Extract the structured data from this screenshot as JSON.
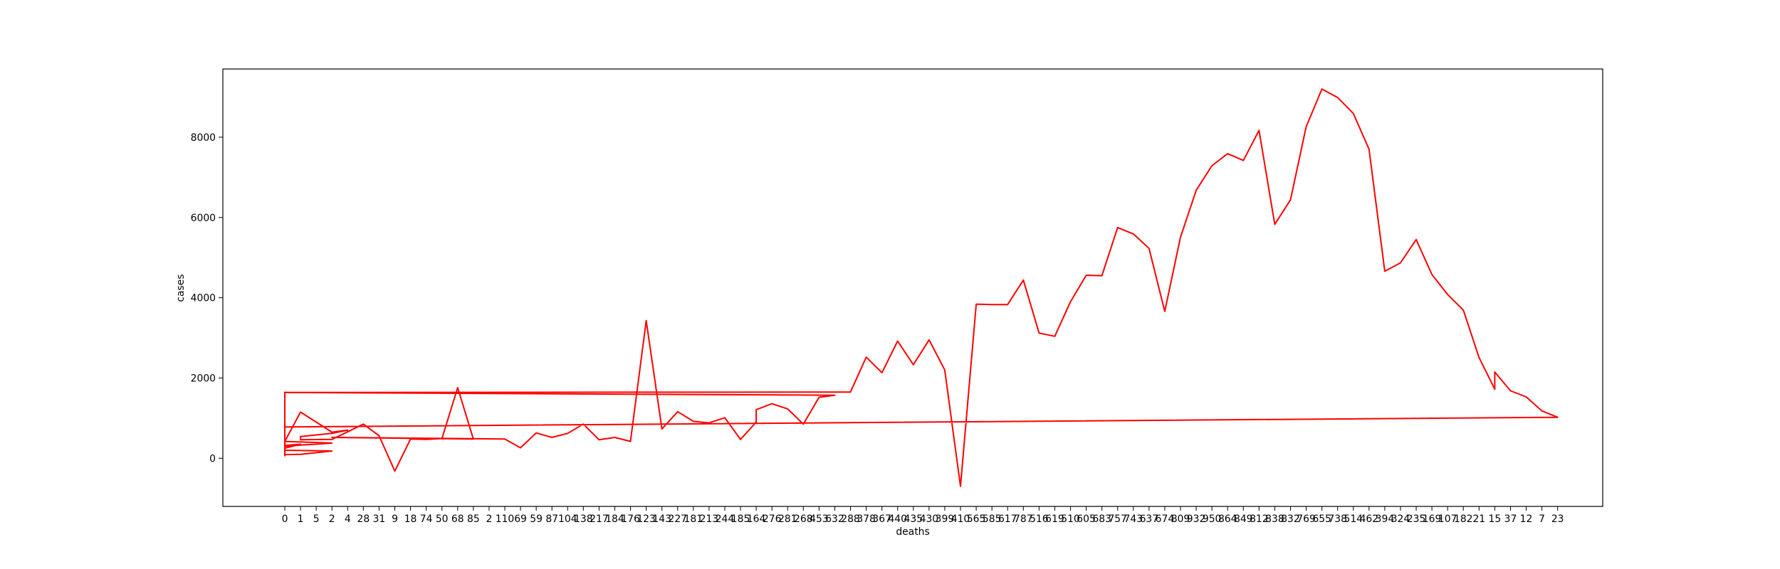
{
  "chart_data": {
    "type": "line",
    "title": "",
    "xlabel": "deaths",
    "ylabel": "cases",
    "x": [
      "0",
      "0",
      "0",
      "0",
      "0",
      "0",
      "0",
      "1",
      "2",
      "0",
      "0",
      "1",
      "0",
      "0",
      "0",
      "0",
      "0",
      "1",
      "5",
      "2",
      "0",
      "1",
      "2",
      "4",
      "2",
      "1",
      "1",
      "2",
      "28",
      "31",
      "9",
      "18",
      "74",
      "50",
      "68",
      "85",
      "2",
      "110",
      "69",
      "59",
      "87",
      "104",
      "138",
      "217",
      "184",
      "176",
      "123",
      "143",
      "227",
      "181",
      "213",
      "244",
      "185",
      "164",
      "164",
      "276",
      "281",
      "268",
      "453",
      "632",
      "0",
      "288",
      "378",
      "367",
      "440",
      "435",
      "430",
      "399",
      "410",
      "565",
      "585",
      "617",
      "787",
      "516",
      "619",
      "510",
      "605",
      "683",
      "757",
      "743",
      "637",
      "674",
      "809",
      "932",
      "950",
      "864",
      "849",
      "812",
      "838",
      "832",
      "769",
      "655",
      "738",
      "514",
      "462",
      "394",
      "324",
      "235",
      "169",
      "107",
      "182",
      "21",
      "15",
      "15",
      "37",
      "12",
      "7",
      "23",
      "0"
    ],
    "y": [
      1660,
      1100,
      1120,
      1000,
      900,
      60,
      90,
      100,
      180,
      200,
      250,
      350,
      320,
      300,
      240,
      260,
      300,
      330,
      350,
      380,
      420,
      1150,
      650,
      700,
      620,
      540,
      460,
      470,
      850,
      560,
      -320,
      480,
      470,
      490,
      1760,
      480,
      520,
      480,
      260,
      630,
      520,
      620,
      850,
      460,
      520,
      420,
      3430,
      730,
      1160,
      920,
      880,
      1010,
      470,
      900,
      1210,
      1360,
      1230,
      850,
      1520,
      1570,
      1640,
      1650,
      2520,
      2130,
      2920,
      2330,
      2950,
      2200,
      -700,
      3840,
      3830,
      3830,
      4440,
      3120,
      3040,
      3900,
      4560,
      4550,
      5750,
      5590,
      5230,
      3660,
      5510,
      6680,
      7290,
      7590,
      7420,
      8170,
      5830,
      6440,
      8260,
      9200,
      8990,
      8590,
      7700,
      4660,
      4870,
      5450,
      4580,
      4080,
      3690,
      2510,
      1720,
      2150,
      1680,
      1530,
      1180,
      1020,
      780
    ],
    "x_categories": [
      "0",
      "1",
      "5",
      "2",
      "4",
      "28",
      "31",
      "9",
      "18",
      "74",
      "50",
      "68",
      "85",
      "2",
      "110",
      "69",
      "59",
      "87",
      "104",
      "138",
      "217",
      "184",
      "176",
      "123",
      "143",
      "227",
      "181",
      "213",
      "244",
      "185",
      "164",
      "276",
      "281",
      "268",
      "453",
      "632",
      "288",
      "378",
      "367",
      "440",
      "435",
      "430",
      "399",
      "410",
      "565",
      "585",
      "617",
      "787",
      "516",
      "619",
      "510",
      "605",
      "683",
      "757",
      "743",
      "637",
      "674",
      "809",
      "932",
      "950",
      "864",
      "849",
      "812",
      "838",
      "832",
      "769",
      "655",
      "738",
      "514",
      "462",
      "394",
      "324",
      "235",
      "169",
      "107",
      "182",
      "21",
      "15",
      "37",
      "12",
      "7",
      "23"
    ],
    "yticks": [
      0,
      2000,
      4000,
      6000,
      8000
    ],
    "ylim": [
      -1200,
      9700
    ],
    "series_color": "#ff0000",
    "grid": false,
    "legend": "none"
  }
}
